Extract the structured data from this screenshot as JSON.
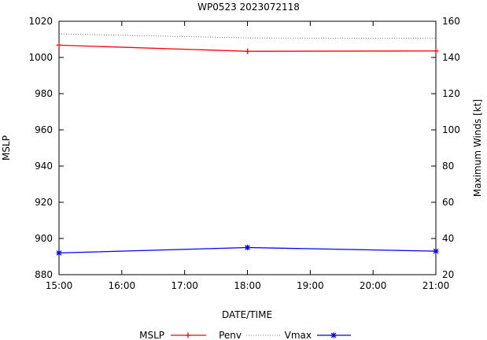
{
  "chart_data": {
    "type": "line",
    "title": "WP0523 2023072118",
    "xlabel": "DATE/TIME",
    "ylabel": "MSLP",
    "y2label": "Maximum Winds [kt]",
    "x_ticks": [
      "15:00",
      "16:00",
      "17:00",
      "18:00",
      "19:00",
      "20:00",
      "21:00"
    ],
    "x_hours": [
      15,
      16,
      17,
      18,
      19,
      20,
      21
    ],
    "xlim": [
      15,
      21
    ],
    "ylim": [
      880,
      1020
    ],
    "y_ticks": [
      880,
      900,
      920,
      940,
      960,
      980,
      1000,
      1020
    ],
    "y2lim": [
      20,
      160
    ],
    "y2_ticks": [
      20,
      40,
      60,
      80,
      100,
      120,
      140,
      160
    ],
    "grid": false,
    "legend_position": "bottom",
    "series": [
      {
        "name": "MSLP",
        "axis": "y",
        "style": "line",
        "color": "#ff0000",
        "marker": "plus",
        "x": [
          15,
          18,
          21
        ],
        "values": [
          1006.8,
          1003.4,
          1003.6
        ]
      },
      {
        "name": "Penv",
        "axis": "y",
        "style": "dotted",
        "color": "#555555",
        "marker": "none",
        "x": [
          15,
          18,
          21
        ],
        "values": [
          1013.0,
          1010.8,
          1010.6
        ]
      },
      {
        "name": "Vmax",
        "axis": "y2",
        "style": "line",
        "color": "#0000ff",
        "marker": "star",
        "x": [
          15,
          18,
          21
        ],
        "values": [
          32,
          35,
          33
        ]
      }
    ]
  }
}
